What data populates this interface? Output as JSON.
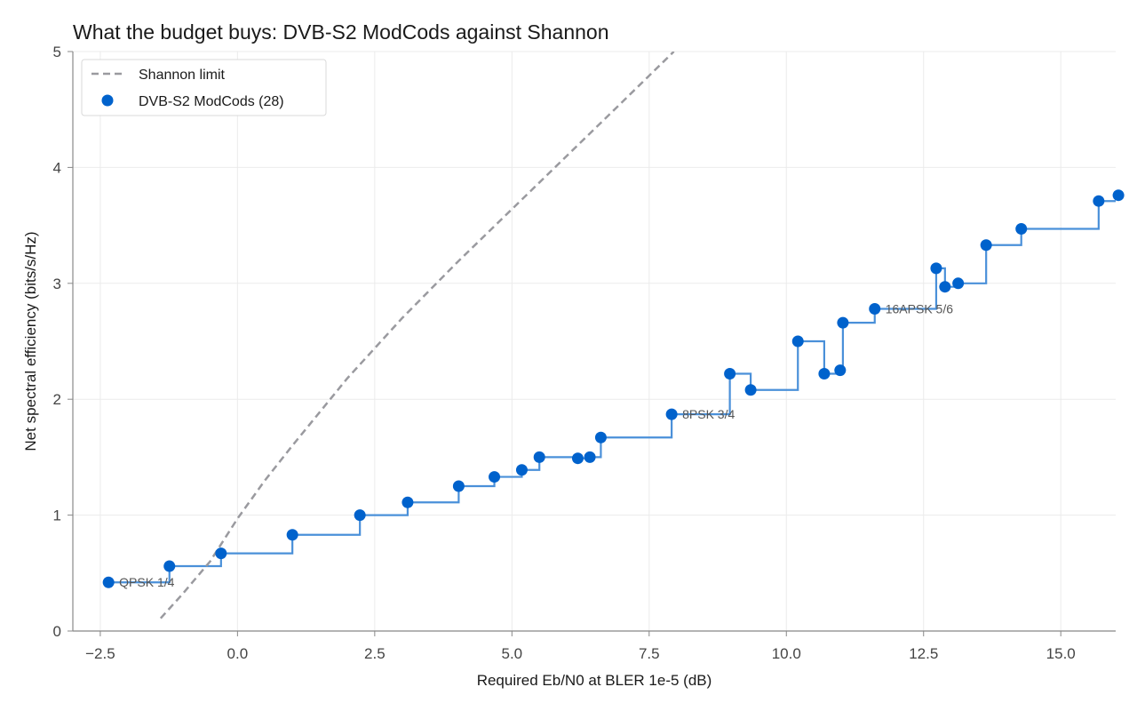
{
  "chart_data": {
    "type": "scatter",
    "title": "What the budget buys: DVB-S2 ModCods against Shannon",
    "xlabel": "Required Eb/N0 at BLER 1e-5 (dB)",
    "ylabel": "Net spectral efficiency (bits/s/Hz)",
    "xlim": [
      -3.0,
      16.0
    ],
    "ylim": [
      0,
      5
    ],
    "xticks": [
      -2.5,
      0.0,
      2.5,
      5.0,
      7.5,
      10.0,
      12.5,
      15.0
    ],
    "xtick_labels": [
      "−2.5",
      "0.0",
      "2.5",
      "5.0",
      "7.5",
      "10.0",
      "12.5",
      "15.0"
    ],
    "yticks": [
      0,
      1,
      2,
      3,
      4,
      5
    ],
    "ytick_labels": [
      "0",
      "1",
      "2",
      "3",
      "4",
      "5"
    ],
    "grid": true,
    "legend_position": "top-left",
    "colors": {
      "points": "#0062cc",
      "step_line": "#4a90d9",
      "shannon": "#9a9a9f",
      "grid": "#ebebeb",
      "axis": "#888888"
    },
    "series": [
      {
        "name": "Shannon limit",
        "kind": "line",
        "style": "dashed",
        "x": [
          -1.4,
          -1.0,
          -0.5,
          0.0,
          0.5,
          1.0,
          2.0,
          3.0,
          4.0,
          5.0,
          6.0,
          7.0,
          7.95
        ],
        "y": [
          0.11,
          0.32,
          0.6,
          0.97,
          1.3,
          1.6,
          2.18,
          2.7,
          3.18,
          3.64,
          4.1,
          4.56,
          5.0
        ]
      },
      {
        "name": "DVB-S2 ModCods (28)",
        "kind": "scatter",
        "x": [
          -2.35,
          -1.24,
          -0.3,
          1.0,
          2.23,
          3.1,
          4.03,
          4.68,
          5.18,
          5.5,
          6.2,
          6.42,
          6.62,
          7.91,
          8.97,
          9.35,
          10.21,
          10.69,
          10.98,
          11.03,
          11.61,
          12.73,
          12.89,
          13.13,
          13.64,
          14.28,
          15.69,
          16.05
        ],
        "y": [
          0.42,
          0.56,
          0.67,
          0.83,
          1.0,
          1.11,
          1.25,
          1.33,
          1.39,
          1.5,
          1.49,
          1.5,
          1.67,
          1.87,
          2.22,
          2.08,
          2.5,
          2.22,
          2.25,
          2.66,
          2.78,
          3.13,
          2.97,
          3.0,
          3.33,
          3.47,
          3.71,
          3.76
        ]
      }
    ],
    "step_line": {
      "x": [
        -2.35,
        -1.24,
        -0.3,
        1.0,
        2.23,
        3.1,
        4.03,
        4.68,
        5.18,
        5.5,
        6.2,
        6.42,
        6.62,
        7.91,
        8.97,
        9.35,
        10.21,
        10.69,
        10.98,
        11.03,
        11.61,
        12.73,
        12.89,
        13.13,
        13.64,
        14.28,
        15.69,
        16.05
      ],
      "y": [
        0.42,
        0.56,
        0.67,
        0.83,
        1.0,
        1.11,
        1.25,
        1.33,
        1.39,
        1.5,
        1.49,
        1.5,
        1.67,
        1.87,
        2.22,
        2.08,
        2.5,
        2.22,
        2.25,
        2.66,
        2.78,
        3.13,
        2.97,
        3.0,
        3.33,
        3.47,
        3.71,
        3.76
      ]
    },
    "annotations": [
      {
        "text": "QPSK 1/4",
        "x": -2.35,
        "y": 0.42
      },
      {
        "text": "8PSK 3/4",
        "x": 7.91,
        "y": 1.87
      },
      {
        "text": "16APSK 5/6",
        "x": 11.61,
        "y": 2.78
      }
    ]
  }
}
